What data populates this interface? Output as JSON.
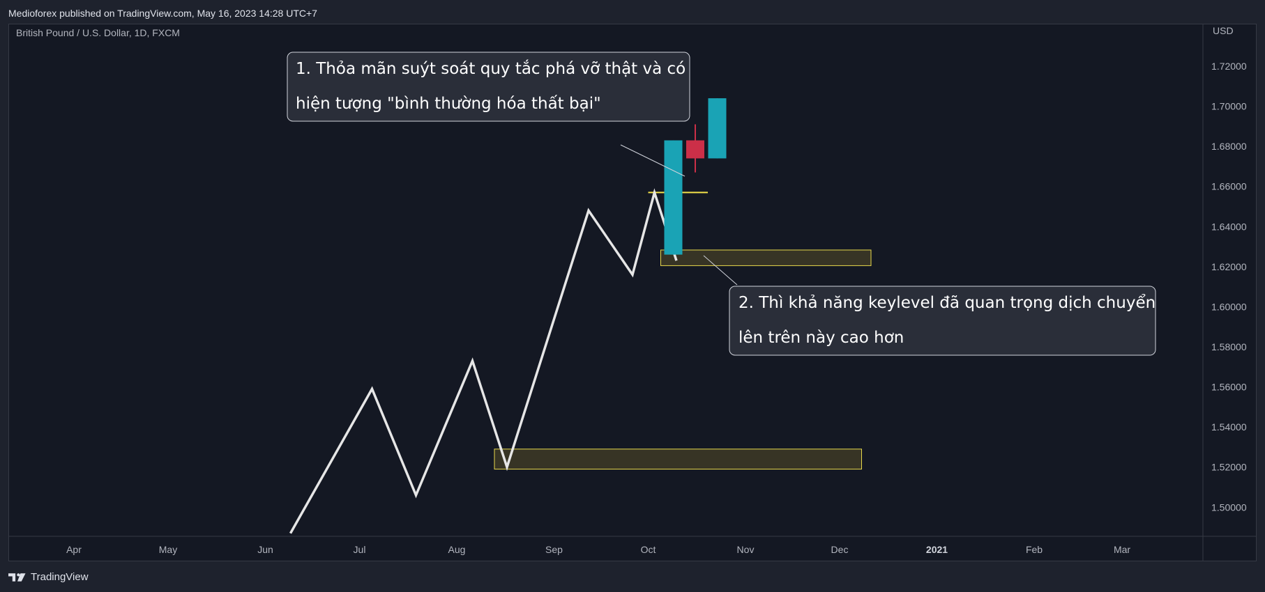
{
  "header": {
    "published": "Medioforex published on TradingView.com, May 16, 2023 14:28 UTC+7"
  },
  "chart_data": {
    "type": "line",
    "symbol": "British Pound / U.S. Dollar, 1D, FXCM",
    "currency": "USD",
    "x_labels": [
      "Apr",
      "May",
      "Jun",
      "Jul",
      "Aug",
      "Sep",
      "Oct",
      "Nov",
      "Dec",
      "2021",
      "Feb",
      "Mar"
    ],
    "y_ticks": [
      "1.72000",
      "1.70000",
      "1.68000",
      "1.66000",
      "1.64000",
      "1.62000",
      "1.60000",
      "1.58000",
      "1.56000",
      "1.54000",
      "1.52000",
      "1.50000"
    ],
    "ylim": [
      1.4855,
      1.7412
    ],
    "line_series": {
      "x": [
        "2020-06-09",
        "2020-07-05",
        "2020-07-19",
        "2020-08-06",
        "2020-08-17",
        "2020-09-12",
        "2020-09-26",
        "2020-10-03",
        "2020-10-10"
      ],
      "y": [
        1.487,
        1.559,
        1.506,
        1.573,
        1.52,
        1.648,
        1.616,
        1.657,
        1.623
      ]
    },
    "candles": [
      {
        "date": "2020-10-09",
        "open": 1.626,
        "high": 1.683,
        "low": 1.626,
        "close": 1.683
      },
      {
        "date": "2020-10-16",
        "open": 1.683,
        "high": 1.691,
        "low": 1.667,
        "close": 1.674
      },
      {
        "date": "2020-10-23",
        "open": 1.674,
        "high": 1.704,
        "low": 1.674,
        "close": 1.704
      }
    ],
    "zones": [
      {
        "x0": "2020-08-13",
        "x1": "2020-12-08",
        "y0": 1.519,
        "y1": 1.529
      },
      {
        "x0": "2020-10-05",
        "x1": "2020-12-11",
        "y0": 1.6205,
        "y1": 1.6283
      }
    ],
    "level_line": {
      "x0": "2020-10-01",
      "x1": "2020-10-20",
      "y": 1.657
    },
    "annotations": [
      {
        "line1": "1. Thỏa mãn suýt soát quy tắc phá vỡ thật và có",
        "line2": "hiện tượng \"bình thường hóa thất bại\""
      },
      {
        "line1": "2. Thì khả năng keylevel đã quan trọng dịch chuyển",
        "line2": "lên trên này cao hơn"
      }
    ],
    "colors": {
      "line": "#e6e6e6",
      "bull": "#1aa3b5",
      "bear": "#cc2f48",
      "zone_fill": "#3d3a26",
      "zone_border": "#e8d94c",
      "level": "#f5e34a",
      "callout_fill": "#2a2e39",
      "callout_border": "#d1d4dc"
    },
    "grid": false
  },
  "footer": {
    "brand": "TradingView"
  }
}
